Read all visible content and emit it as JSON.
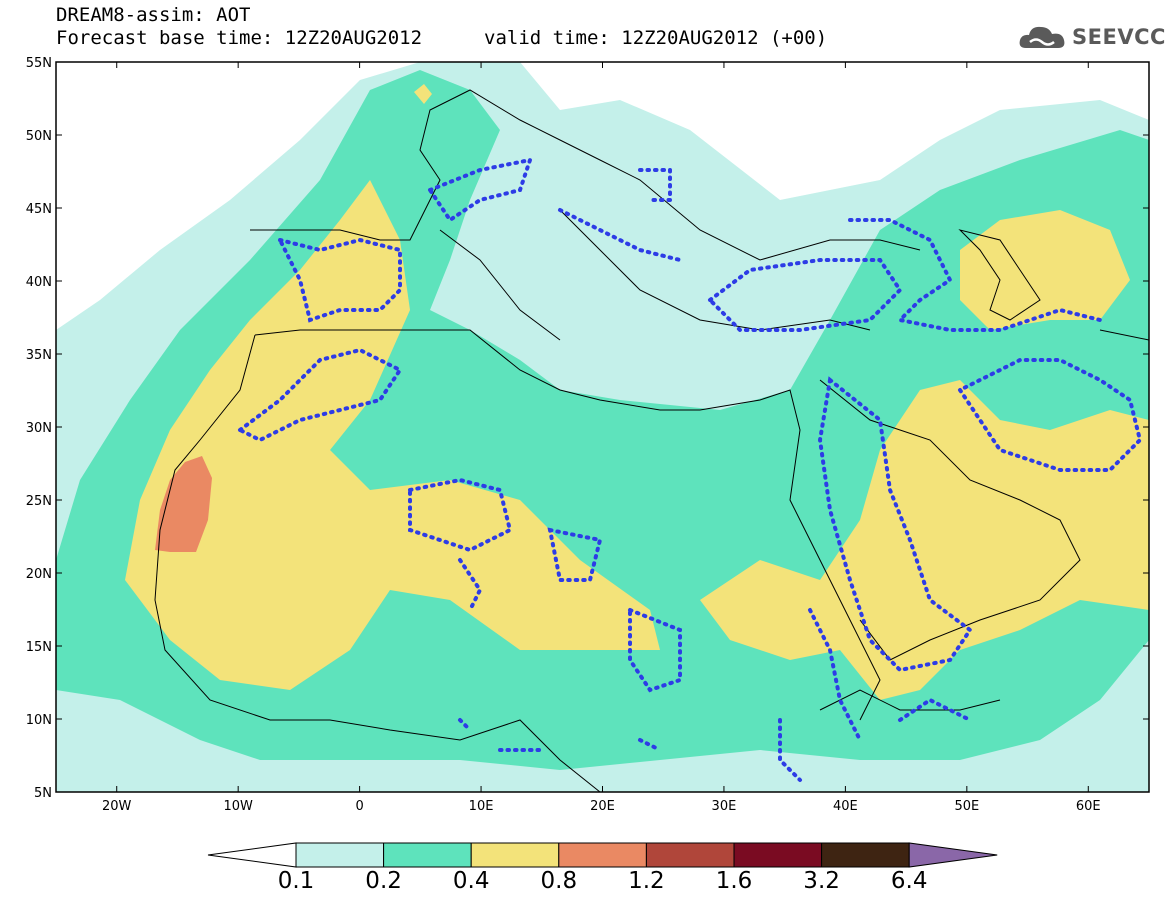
{
  "header": {
    "line1": "DREAM8-assim: AOT",
    "line2": "Forecast base time: 12Z20AUG2012",
    "valid": "valid time: 12Z20AUG2012 (+00)",
    "logo_text": "SEEVCCC",
    "logo_icon": "cloud-icon"
  },
  "map": {
    "lon_range": [
      -25,
      65
    ],
    "lat_range": [
      5,
      55
    ],
    "lat_ticks": [
      "55N",
      "50N",
      "45N",
      "40N",
      "35N",
      "30N",
      "25N",
      "20N",
      "15N",
      "10N",
      "5N"
    ],
    "lon_ticks": [
      "20W",
      "10W",
      "0",
      "10E",
      "20E",
      "30E",
      "40E",
      "50E",
      "60E"
    ]
  },
  "colorbar": {
    "labels": [
      "0.1",
      "0.2",
      "0.4",
      "0.8",
      "1.2",
      "1.6",
      "3.2",
      "6.4"
    ],
    "colors": [
      "#ffffff",
      "#c4f0ea",
      "#5ee3bc",
      "#f3e37a",
      "#ea8963",
      "#b0463a",
      "#7a0b22",
      "#3e2412",
      "#8a67a8"
    ]
  }
}
